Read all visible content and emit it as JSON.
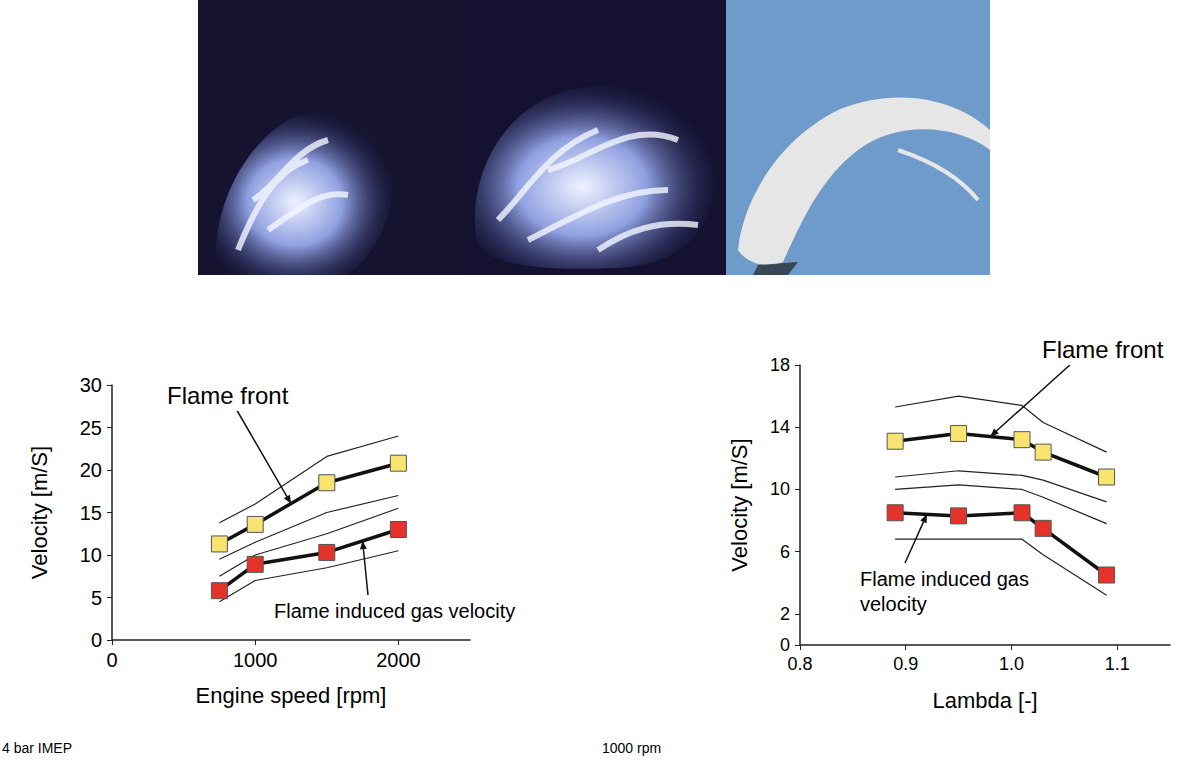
{
  "chart_data": [
    {
      "type": "line",
      "x_label": "Engine speed [rpm]",
      "y_label": "Velocity [m/S]",
      "subtitle": "4 bar IMEP",
      "x": [
        750,
        1000,
        1500,
        2000
      ],
      "xlim": [
        0,
        2500
      ],
      "xticks": [
        0,
        1000,
        2000
      ],
      "ylim": [
        0,
        30
      ],
      "yticks": [
        0,
        5,
        10,
        15,
        20,
        25,
        30
      ],
      "grid": false,
      "series": [
        {
          "name": "Flame front",
          "color": "#f7e46e",
          "marker": "square",
          "values": [
            11.3,
            13.6,
            18.5,
            20.8
          ],
          "upper": [
            13.8,
            16.0,
            21.6,
            24.0
          ],
          "lower": [
            9.5,
            11.5,
            15.0,
            17.0
          ]
        },
        {
          "name": "Flame induced gas velocity",
          "color": "#e5322b",
          "marker": "square",
          "values": [
            5.8,
            8.9,
            10.3,
            13.0
          ],
          "upper": [
            7.5,
            10.0,
            12.5,
            15.5
          ],
          "lower": [
            4.5,
            7.0,
            8.5,
            10.5
          ]
        }
      ]
    },
    {
      "type": "line",
      "x_label": "Lambda [-]",
      "y_label": "Velocity [m/S]",
      "subtitle": "1000 rpm",
      "x": [
        0.89,
        0.95,
        1.01,
        1.03,
        1.09
      ],
      "xlim": [
        0.8,
        1.15
      ],
      "xticks": [
        0.8,
        0.9,
        {
          "value": 1,
          "label": "1.0"
        },
        1.1
      ],
      "ylim": [
        0,
        18
      ],
      "yticks": [
        0,
        2,
        6,
        10,
        14,
        18
      ],
      "grid": false,
      "series": [
        {
          "name": "Flame front",
          "color": "#f7e46e",
          "marker": "square",
          "values": [
            13.1,
            13.6,
            13.2,
            12.4,
            10.8
          ],
          "upper": [
            15.3,
            16.0,
            15.4,
            14.3,
            12.4
          ],
          "lower": [
            10.8,
            11.2,
            10.9,
            10.6,
            9.2
          ]
        },
        {
          "name": "Flame induced gas velocity",
          "color": "#e5322b",
          "marker": "square",
          "values": [
            8.5,
            8.3,
            8.5,
            7.5,
            4.5
          ],
          "upper": [
            10.0,
            10.3,
            10.0,
            9.5,
            7.8
          ],
          "lower": [
            6.8,
            6.8,
            6.8,
            5.8,
            3.2
          ]
        }
      ]
    }
  ]
}
